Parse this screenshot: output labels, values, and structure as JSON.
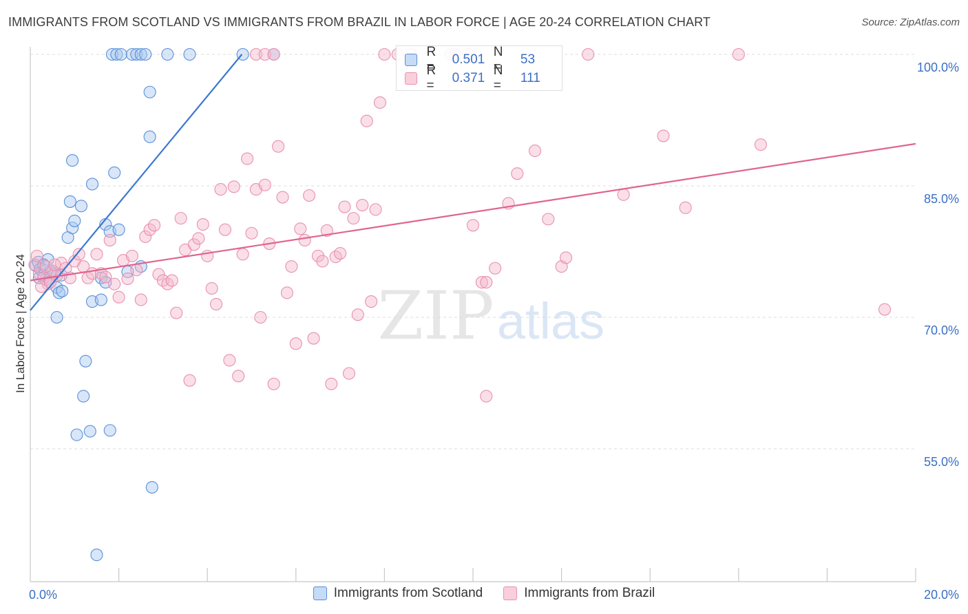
{
  "title": "IMMIGRANTS FROM SCOTLAND VS IMMIGRANTS FROM BRAZIL IN LABOR FORCE | AGE 20-24 CORRELATION CHART",
  "source": "Source: ZipAtlas.com",
  "watermark": {
    "zip": "ZIP",
    "atlas": "atlas"
  },
  "legend": {
    "scotland": {
      "r_label": "R =",
      "r_value": "0.501",
      "n_label": "N =",
      "n_value": "53"
    },
    "brazil": {
      "r_label": "R =",
      "r_value": "0.371",
      "n_label": "N =",
      "n_value": "111"
    }
  },
  "bottom_legend": {
    "scotland": "Immigrants from Scotland",
    "brazil": "Immigrants from Brazil"
  },
  "colors": {
    "scotland_fill": "#a8c8f0",
    "scotland_stroke": "#5a8fd8",
    "scotland_line": "#3a77d0",
    "brazil_fill": "#f5b8cc",
    "brazil_stroke": "#e890ad",
    "brazil_line": "#e0648e",
    "tick_label": "#3b6fc4",
    "grid": "#dcdcdc"
  },
  "chart_data": {
    "type": "scatter",
    "title": "IMMIGRANTS FROM SCOTLAND VS IMMIGRANTS FROM BRAZIL IN LABOR FORCE | AGE 20-24 CORRELATION CHART",
    "xlabel": "",
    "ylabel": "In Labor Force | Age 20-24",
    "xlim": [
      0,
      20
    ],
    "ylim": [
      40,
      102
    ],
    "x_tick_labels": [
      {
        "value": 0,
        "label": "0.0%"
      },
      {
        "value": 20,
        "label": "20.0%"
      }
    ],
    "y_tick_labels": [
      {
        "value": 100,
        "label": "100.0%"
      },
      {
        "value": 85,
        "label": "85.0%"
      },
      {
        "value": 70,
        "label": "70.0%"
      },
      {
        "value": 55,
        "label": "55.0%"
      }
    ],
    "y_grid": [
      100,
      85,
      70,
      55
    ],
    "x_minor_ticks": [
      2,
      4,
      6,
      8,
      10,
      12,
      14,
      16,
      18,
      20
    ],
    "series": [
      {
        "name": "Immigrants from Scotland",
        "trend": {
          "x": [
            0,
            4.78
          ],
          "y": [
            70.8,
            100
          ]
        },
        "points": [
          [
            0.12,
            75.9
          ],
          [
            0.18,
            76.3
          ],
          [
            0.22,
            75.5
          ],
          [
            0.3,
            74.8
          ],
          [
            0.35,
            74.3
          ],
          [
            0.4,
            76.6
          ],
          [
            0.5,
            75.3
          ],
          [
            0.55,
            75.0
          ],
          [
            0.6,
            73.4
          ],
          [
            0.65,
            72.8
          ],
          [
            0.72,
            73.0
          ],
          [
            0.6,
            70.0
          ],
          [
            0.85,
            79.1
          ],
          [
            0.95,
            80.2
          ],
          [
            1.0,
            81.0
          ],
          [
            0.9,
            83.2
          ],
          [
            1.15,
            82.7
          ],
          [
            0.95,
            87.9
          ],
          [
            1.4,
            85.2
          ],
          [
            1.9,
            86.5
          ],
          [
            1.6,
            74.5
          ],
          [
            1.4,
            71.8
          ],
          [
            1.6,
            72.0
          ],
          [
            1.7,
            74.0
          ],
          [
            1.7,
            80.6
          ],
          [
            1.8,
            79.8
          ],
          [
            2.0,
            80.0
          ],
          [
            2.2,
            75.2
          ],
          [
            2.5,
            75.8
          ],
          [
            2.7,
            90.6
          ],
          [
            2.7,
            95.7
          ],
          [
            1.85,
            100
          ],
          [
            1.95,
            100
          ],
          [
            2.05,
            100
          ],
          [
            2.3,
            100
          ],
          [
            2.4,
            100
          ],
          [
            2.5,
            100
          ],
          [
            2.6,
            100
          ],
          [
            3.1,
            100
          ],
          [
            3.6,
            100
          ],
          [
            5.5,
            100
          ],
          [
            4.8,
            100
          ],
          [
            1.25,
            65.0
          ],
          [
            1.2,
            61.0
          ],
          [
            1.05,
            56.6
          ],
          [
            1.35,
            57.0
          ],
          [
            1.8,
            57.1
          ],
          [
            2.75,
            50.6
          ],
          [
            1.5,
            42.9
          ],
          [
            0.2,
            74.5
          ],
          [
            0.45,
            75.2
          ],
          [
            0.7,
            74.8
          ],
          [
            0.3,
            76.0
          ]
        ]
      },
      {
        "name": "Immigrants from Brazil",
        "trend": {
          "x": [
            0,
            20
          ],
          "y": [
            74.2,
            89.8
          ]
        },
        "points": [
          [
            0.1,
            76.0
          ],
          [
            0.2,
            75.0
          ],
          [
            0.3,
            74.5
          ],
          [
            0.4,
            73.8
          ],
          [
            0.5,
            75.3
          ],
          [
            0.6,
            74.8
          ],
          [
            0.7,
            76.2
          ],
          [
            0.8,
            75.6
          ],
          [
            0.9,
            74.5
          ],
          [
            1.0,
            76.4
          ],
          [
            1.1,
            77.2
          ],
          [
            1.2,
            75.8
          ],
          [
            1.3,
            74.5
          ],
          [
            1.4,
            75.0
          ],
          [
            1.5,
            77.2
          ],
          [
            1.6,
            75.0
          ],
          [
            1.7,
            74.6
          ],
          [
            1.8,
            78.8
          ],
          [
            1.9,
            73.8
          ],
          [
            2.0,
            72.3
          ],
          [
            2.1,
            76.5
          ],
          [
            2.2,
            74.4
          ],
          [
            2.3,
            77.0
          ],
          [
            2.4,
            75.4
          ],
          [
            2.5,
            72.0
          ],
          [
            2.6,
            79.2
          ],
          [
            2.7,
            80.0
          ],
          [
            2.8,
            80.5
          ],
          [
            2.9,
            74.9
          ],
          [
            3.0,
            74.2
          ],
          [
            3.1,
            73.8
          ],
          [
            3.2,
            74.2
          ],
          [
            3.3,
            70.5
          ],
          [
            3.4,
            81.3
          ],
          [
            3.5,
            77.7
          ],
          [
            3.6,
            62.8
          ],
          [
            3.7,
            78.3
          ],
          [
            3.8,
            79.0
          ],
          [
            3.9,
            80.6
          ],
          [
            4.0,
            77.0
          ],
          [
            4.1,
            73.3
          ],
          [
            4.2,
            71.5
          ],
          [
            4.3,
            84.6
          ],
          [
            4.4,
            80.0
          ],
          [
            4.5,
            65.1
          ],
          [
            4.6,
            84.9
          ],
          [
            4.7,
            63.3
          ],
          [
            4.8,
            77.2
          ],
          [
            4.9,
            88.1
          ],
          [
            5.0,
            79.6
          ],
          [
            5.1,
            84.6
          ],
          [
            5.2,
            70.0
          ],
          [
            5.3,
            85.1
          ],
          [
            5.4,
            78.4
          ],
          [
            5.5,
            62.4
          ],
          [
            5.6,
            89.5
          ],
          [
            5.7,
            83.7
          ],
          [
            5.8,
            72.8
          ],
          [
            5.9,
            75.8
          ],
          [
            6.0,
            67.0
          ],
          [
            6.1,
            80.1
          ],
          [
            6.2,
            78.8
          ],
          [
            6.3,
            83.9
          ],
          [
            6.4,
            67.6
          ],
          [
            6.5,
            77.0
          ],
          [
            6.6,
            76.4
          ],
          [
            6.7,
            79.9
          ],
          [
            6.8,
            62.4
          ],
          [
            6.9,
            76.9
          ],
          [
            7.0,
            77.3
          ],
          [
            7.1,
            82.6
          ],
          [
            7.2,
            63.6
          ],
          [
            7.3,
            81.3
          ],
          [
            7.4,
            70.3
          ],
          [
            7.5,
            82.8
          ],
          [
            7.6,
            92.4
          ],
          [
            7.7,
            71.8
          ],
          [
            7.8,
            82.3
          ],
          [
            7.9,
            94.5
          ],
          [
            8.0,
            100
          ],
          [
            8.3,
            100
          ],
          [
            8.6,
            100
          ],
          [
            9.5,
            100
          ],
          [
            9.6,
            100
          ],
          [
            10.0,
            80.5
          ],
          [
            10.2,
            74.0
          ],
          [
            10.3,
            74.0
          ],
          [
            10.3,
            61.0
          ],
          [
            10.5,
            75.6
          ],
          [
            10.8,
            83.0
          ],
          [
            11.0,
            86.4
          ],
          [
            11.4,
            89.0
          ],
          [
            11.7,
            81.2
          ],
          [
            12.0,
            75.8
          ],
          [
            12.1,
            76.8
          ],
          [
            12.6,
            100
          ],
          [
            13.4,
            84.0
          ],
          [
            14.3,
            90.7
          ],
          [
            14.8,
            82.5
          ],
          [
            16.0,
            100
          ],
          [
            16.5,
            89.7
          ],
          [
            19.3,
            70.9
          ],
          [
            5.1,
            100
          ],
          [
            5.3,
            100
          ],
          [
            5.5,
            100
          ],
          [
            9.9,
            100
          ],
          [
            0.15,
            77.0
          ],
          [
            0.25,
            73.5
          ],
          [
            0.35,
            75.8
          ],
          [
            0.45,
            74.0
          ],
          [
            0.55,
            76.0
          ]
        ]
      }
    ]
  }
}
